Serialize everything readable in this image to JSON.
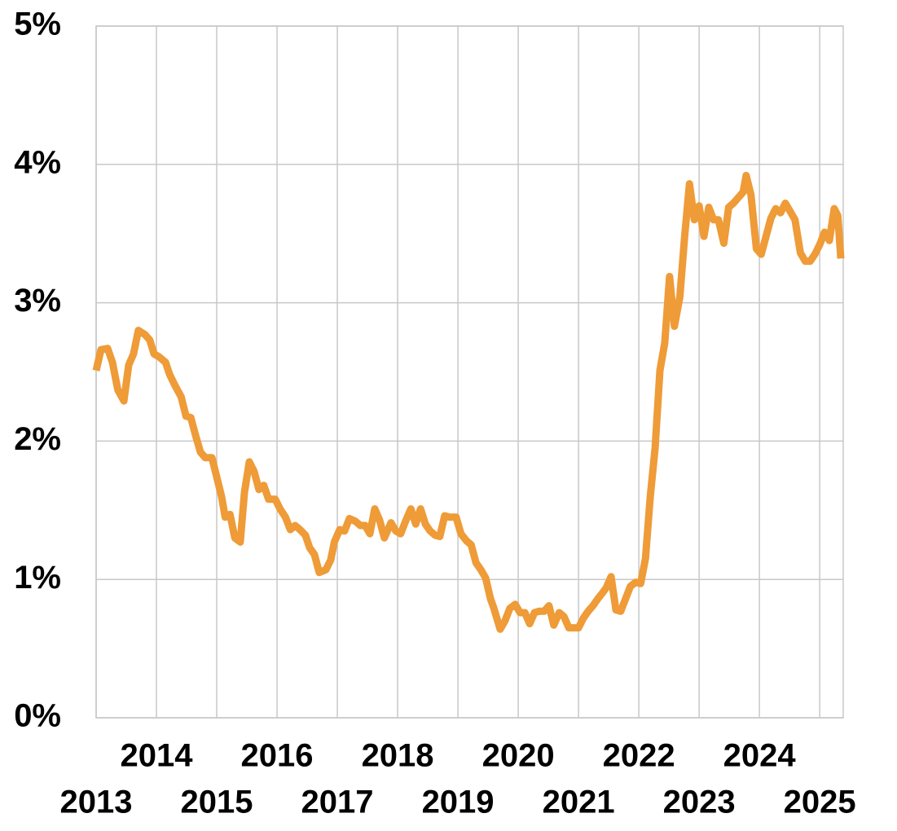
{
  "chart_data": {
    "type": "line",
    "x": [
      2013.0,
      2013.08,
      2013.19,
      2013.27,
      2013.36,
      2013.46,
      2013.54,
      2013.62,
      2013.7,
      2013.81,
      2013.89,
      2013.96,
      2014.04,
      2014.15,
      2014.22,
      2014.31,
      2014.41,
      2014.49,
      2014.57,
      2014.65,
      2014.73,
      2014.81,
      2014.92,
      2015.0,
      2015.08,
      2015.14,
      2015.22,
      2015.3,
      2015.39,
      2015.46,
      2015.54,
      2015.62,
      2015.7,
      2015.78,
      2015.86,
      2015.97,
      2016.05,
      2016.14,
      2016.22,
      2016.3,
      2016.38,
      2016.47,
      2016.54,
      2016.62,
      2016.7,
      2016.81,
      2016.89,
      2016.95,
      2017.04,
      2017.12,
      2017.2,
      2017.3,
      2017.38,
      2017.46,
      2017.54,
      2017.62,
      2017.7,
      2017.78,
      2017.89,
      2017.97,
      2018.05,
      2018.14,
      2018.22,
      2018.3,
      2018.38,
      2018.46,
      2018.54,
      2018.62,
      2018.7,
      2018.78,
      2018.86,
      2018.97,
      2019.05,
      2019.14,
      2019.22,
      2019.3,
      2019.38,
      2019.46,
      2019.54,
      2019.59,
      2019.7,
      2019.78,
      2019.86,
      2019.95,
      2020.03,
      2020.11,
      2020.19,
      2020.27,
      2020.35,
      2020.43,
      2020.51,
      2020.59,
      2020.68,
      2020.76,
      2020.84,
      2020.92,
      2021.0,
      2021.08,
      2021.16,
      2021.24,
      2021.32,
      2021.41,
      2021.46,
      2021.54,
      2021.62,
      2021.7,
      2021.78,
      2021.86,
      2021.95,
      2022.03,
      2022.11,
      2022.19,
      2022.27,
      2022.35,
      2022.43,
      2022.51,
      2022.59,
      2022.68,
      2022.76,
      2022.84,
      2022.92,
      2023.0,
      2023.08,
      2023.16,
      2023.24,
      2023.32,
      2023.41,
      2023.49,
      2023.57,
      2023.65,
      2023.73,
      2023.78,
      2023.86,
      2023.95,
      2024.03,
      2024.11,
      2024.19,
      2024.27,
      2024.35,
      2024.43,
      2024.51,
      2024.59,
      2024.68,
      2024.76,
      2024.84,
      2024.92,
      2025.0,
      2025.08,
      2025.16,
      2025.24,
      2025.3,
      2025.35
    ],
    "series": [
      {
        "color": "#ee9b38",
        "values": [
          2.51,
          2.66,
          2.67,
          2.57,
          2.37,
          2.29,
          2.55,
          2.63,
          2.8,
          2.77,
          2.73,
          2.63,
          2.61,
          2.57,
          2.48,
          2.4,
          2.32,
          2.18,
          2.17,
          2.04,
          1.92,
          1.88,
          1.88,
          1.74,
          1.6,
          1.45,
          1.47,
          1.3,
          1.27,
          1.63,
          1.85,
          1.78,
          1.65,
          1.68,
          1.58,
          1.58,
          1.51,
          1.45,
          1.36,
          1.39,
          1.36,
          1.32,
          1.23,
          1.18,
          1.05,
          1.07,
          1.14,
          1.27,
          1.36,
          1.35,
          1.44,
          1.42,
          1.39,
          1.39,
          1.33,
          1.51,
          1.43,
          1.3,
          1.41,
          1.35,
          1.33,
          1.43,
          1.51,
          1.4,
          1.51,
          1.4,
          1.35,
          1.32,
          1.31,
          1.46,
          1.45,
          1.45,
          1.33,
          1.28,
          1.25,
          1.12,
          1.07,
          1.01,
          0.86,
          0.8,
          0.64,
          0.7,
          0.79,
          0.82,
          0.76,
          0.76,
          0.68,
          0.76,
          0.77,
          0.77,
          0.81,
          0.67,
          0.76,
          0.73,
          0.65,
          0.65,
          0.65,
          0.72,
          0.77,
          0.81,
          0.86,
          0.91,
          0.94,
          1.02,
          0.78,
          0.77,
          0.86,
          0.95,
          0.98,
          0.97,
          1.15,
          1.6,
          1.95,
          2.51,
          2.71,
          3.19,
          2.83,
          3.04,
          3.48,
          3.86,
          3.6,
          3.7,
          3.48,
          3.69,
          3.6,
          3.6,
          3.43,
          3.69,
          3.72,
          3.76,
          3.8,
          3.92,
          3.78,
          3.39,
          3.35,
          3.48,
          3.61,
          3.68,
          3.65,
          3.72,
          3.66,
          3.6,
          3.36,
          3.3,
          3.3,
          3.35,
          3.42,
          3.51,
          3.45,
          3.68,
          3.63,
          3.32
        ]
      }
    ],
    "xlim": [
      2013,
      2025.39
    ],
    "xticks": [
      2013,
      2014,
      2015,
      2016,
      2017,
      2018,
      2019,
      2020,
      2021,
      2022,
      2023,
      2024,
      2025
    ],
    "ylim": [
      0,
      5
    ],
    "yticks": [
      {
        "value": 0,
        "label": "0%"
      },
      {
        "value": 1,
        "label": "1%"
      },
      {
        "value": 2,
        "label": "2%"
      },
      {
        "value": 3,
        "label": "3%"
      },
      {
        "value": 4,
        "label": "4%"
      },
      {
        "value": 5,
        "label": "5%"
      }
    ],
    "grid": true
  }
}
